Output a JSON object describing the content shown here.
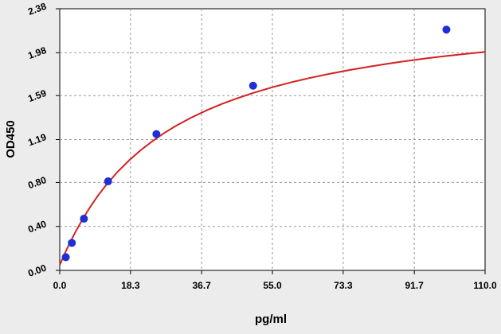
{
  "chart_data": {
    "type": "scatter",
    "title": "",
    "xlabel": "pg/ml",
    "ylabel": "OD450",
    "xlim": [
      0,
      110
    ],
    "ylim": [
      0,
      2.38
    ],
    "x_ticks": [
      "0.0",
      "18.3",
      "36.7",
      "55.0",
      "73.3",
      "91.7",
      "110.0"
    ],
    "y_ticks": [
      "0.00",
      "0.40",
      "0.80",
      "1.19",
      "1.59",
      "1.98",
      "2.38"
    ],
    "grid": true,
    "legend": "none",
    "series": [
      {
        "type": "scatter",
        "color": "#1f2ed6",
        "x": [
          1.56,
          3.13,
          6.25,
          12.5,
          25,
          50,
          100
        ],
        "y": [
          0.12,
          0.25,
          0.47,
          0.81,
          1.24,
          1.68,
          2.19
        ]
      },
      {
        "type": "line",
        "color": "#d42020",
        "x": [
          0,
          2,
          4,
          6,
          8,
          10,
          12,
          15,
          18,
          21,
          24,
          27,
          30,
          34,
          38,
          42,
          46,
          50,
          55,
          60,
          65,
          70,
          75,
          80,
          85,
          90,
          95,
          100,
          105,
          110
        ],
        "y": [
          0.05,
          0.206,
          0.345,
          0.471,
          0.583,
          0.685,
          0.777,
          0.898,
          1.003,
          1.095,
          1.176,
          1.249,
          1.314,
          1.39,
          1.456,
          1.515,
          1.567,
          1.614,
          1.666,
          1.712,
          1.753,
          1.79,
          1.823,
          1.853,
          1.881,
          1.906,
          1.929,
          1.95,
          1.97,
          1.988
        ]
      }
    ]
  }
}
